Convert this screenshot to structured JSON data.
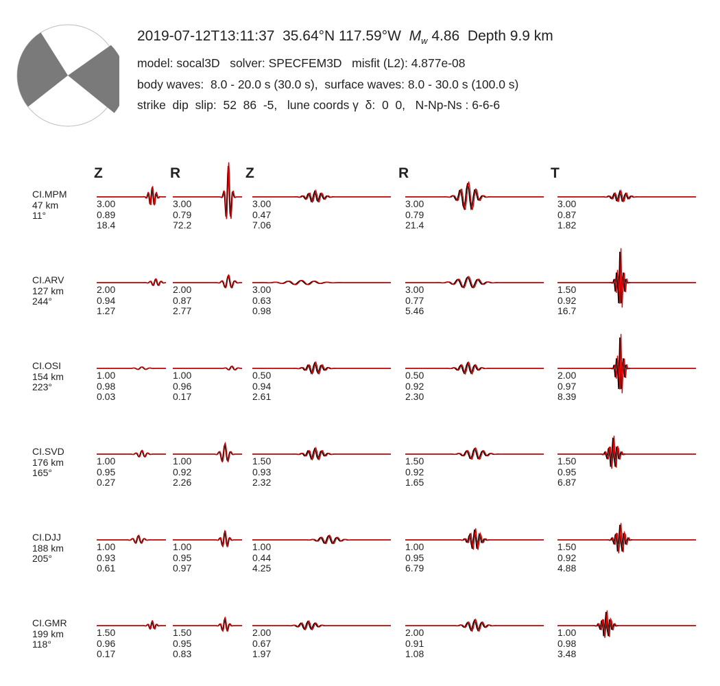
{
  "header": {
    "datetime": "2019-07-12T13:11:37",
    "location": "35.64°N 117.59°W",
    "mw_symbol": "M",
    "mw_sub": "w",
    "magnitude": "4.86",
    "depth": "Depth 9.9 km",
    "model_line": "model: socal3D   solver: SPECFEM3D   misfit (L2): 4.877e-08",
    "waves_line": "body waves:  8.0 - 20.0 s (30.0 s),  surface waves: 8.0 - 30.0 s (100.0 s)",
    "mech_line": "strike  dip  slip:  52  86  -5,   lune coords γ  δ:  0  0,   N-Np-Ns : 6-6-6"
  },
  "colors": {
    "observed": "#000000",
    "synthetic": "#e00000",
    "beachball_fill": "#7a7a7a",
    "beachball_edge": "#bbbbbb"
  },
  "chart_data": {
    "type": "line",
    "title": "",
    "column_headers": [
      "Z",
      "R",
      "Z",
      "R",
      "T"
    ],
    "legend": "none",
    "grid": false,
    "stations": [
      {
        "name": "CI.MPM",
        "distance": "47 km",
        "azimuth": "11°",
        "panels": [
          {
            "scale": "3.00",
            "cc": "0.89",
            "misfit": "18.4"
          },
          {
            "scale": "3.00",
            "cc": "0.79",
            "misfit": "72.2"
          },
          {
            "scale": "3.00",
            "cc": "0.47",
            "misfit": "7.06"
          },
          {
            "scale": "3.00",
            "cc": "0.79",
            "misfit": "21.4"
          },
          {
            "scale": "3.00",
            "cc": "0.87",
            "misfit": "1.82"
          }
        ]
      },
      {
        "name": "CI.ARV",
        "distance": "127 km",
        "azimuth": "244°",
        "panels": [
          {
            "scale": "2.00",
            "cc": "0.94",
            "misfit": "1.27"
          },
          {
            "scale": "2.00",
            "cc": "0.87",
            "misfit": "2.77"
          },
          {
            "scale": "3.00",
            "cc": "0.63",
            "misfit": "0.98"
          },
          {
            "scale": "3.00",
            "cc": "0.77",
            "misfit": "5.46"
          },
          {
            "scale": "1.50",
            "cc": "0.92",
            "misfit": "16.7"
          }
        ]
      },
      {
        "name": "CI.OSI",
        "distance": "154 km",
        "azimuth": "223°",
        "panels": [
          {
            "scale": "1.00",
            "cc": "0.98",
            "misfit": "0.03"
          },
          {
            "scale": "1.00",
            "cc": "0.96",
            "misfit": "0.17"
          },
          {
            "scale": "0.50",
            "cc": "0.94",
            "misfit": "2.61"
          },
          {
            "scale": "0.50",
            "cc": "0.92",
            "misfit": "2.30"
          },
          {
            "scale": "2.00",
            "cc": "0.97",
            "misfit": "8.39"
          }
        ]
      },
      {
        "name": "CI.SVD",
        "distance": "176 km",
        "azimuth": "165°",
        "panels": [
          {
            "scale": "1.00",
            "cc": "0.95",
            "misfit": "0.27"
          },
          {
            "scale": "1.00",
            "cc": "0.92",
            "misfit": "2.26"
          },
          {
            "scale": "1.50",
            "cc": "0.93",
            "misfit": "2.32"
          },
          {
            "scale": "1.50",
            "cc": "0.92",
            "misfit": "1.65"
          },
          {
            "scale": "1.50",
            "cc": "0.95",
            "misfit": "6.87"
          }
        ]
      },
      {
        "name": "CI.DJJ",
        "distance": "188 km",
        "azimuth": "205°",
        "panels": [
          {
            "scale": "1.00",
            "cc": "0.93",
            "misfit": "0.61"
          },
          {
            "scale": "1.00",
            "cc": "0.95",
            "misfit": "0.97"
          },
          {
            "scale": "1.00",
            "cc": "0.44",
            "misfit": "4.25"
          },
          {
            "scale": "1.00",
            "cc": "0.95",
            "misfit": "6.79"
          },
          {
            "scale": "1.50",
            "cc": "0.92",
            "misfit": "4.88"
          }
        ]
      },
      {
        "name": "CI.GMR",
        "distance": "199 km",
        "azimuth": "118°",
        "panels": [
          {
            "scale": "1.50",
            "cc": "0.96",
            "misfit": "0.17"
          },
          {
            "scale": "1.50",
            "cc": "0.95",
            "misfit": "0.83"
          },
          {
            "scale": "2.00",
            "cc": "0.67",
            "misfit": "1.97"
          },
          {
            "scale": "2.00",
            "cc": "0.91",
            "misfit": "1.08"
          },
          {
            "scale": "1.00",
            "cc": "0.98",
            "misfit": "3.48"
          }
        ]
      }
    ]
  }
}
